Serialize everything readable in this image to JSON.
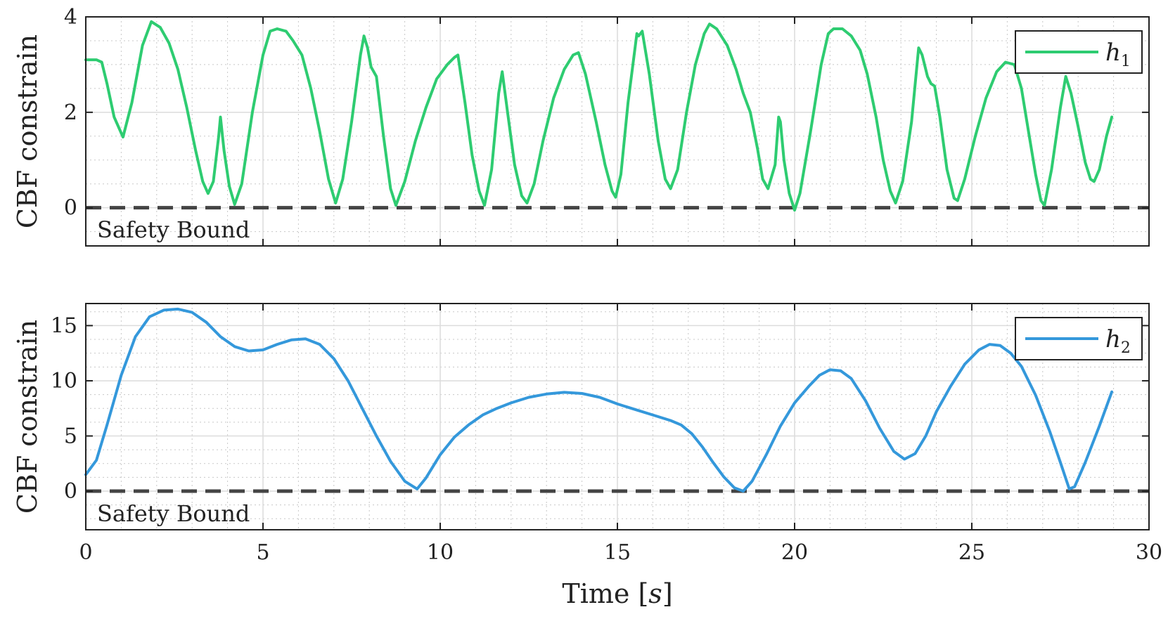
{
  "chart_data": [
    {
      "type": "line",
      "ylabel": "CBF constrain",
      "xlim": [
        0,
        30
      ],
      "ylim": [
        -0.8,
        4
      ],
      "yticks": [
        0,
        2,
        4
      ],
      "xticks": [
        0,
        5,
        10,
        15,
        20,
        25,
        30
      ],
      "x_tick_labels_shown": false,
      "grid": true,
      "minor_grid": true,
      "legend_position": "top-right",
      "series": [
        {
          "name": "h",
          "name_subscript": "1",
          "color": "#2ecc71",
          "points": [
            [
              0,
              3.1
            ],
            [
              0.3,
              3.1
            ],
            [
              0.45,
              3.05
            ],
            [
              0.6,
              2.6
            ],
            [
              0.8,
              1.9
            ],
            [
              1.05,
              1.48
            ],
            [
              1.3,
              2.2
            ],
            [
              1.6,
              3.4
            ],
            [
              1.85,
              3.9
            ],
            [
              2.1,
              3.78
            ],
            [
              2.35,
              3.45
            ],
            [
              2.6,
              2.9
            ],
            [
              2.85,
              2.1
            ],
            [
              3.1,
              1.2
            ],
            [
              3.3,
              0.55
            ],
            [
              3.45,
              0.3
            ],
            [
              3.6,
              0.55
            ],
            [
              3.75,
              1.5
            ],
            [
              3.8,
              1.9
            ],
            [
              3.9,
              1.2
            ],
            [
              4.05,
              0.45
            ],
            [
              4.2,
              0.07
            ],
            [
              4.4,
              0.5
            ],
            [
              4.7,
              2.0
            ],
            [
              5.0,
              3.2
            ],
            [
              5.2,
              3.7
            ],
            [
              5.4,
              3.75
            ],
            [
              5.65,
              3.7
            ],
            [
              5.85,
              3.5
            ],
            [
              6.1,
              3.2
            ],
            [
              6.35,
              2.5
            ],
            [
              6.6,
              1.6
            ],
            [
              6.85,
              0.6
            ],
            [
              7.05,
              0.1
            ],
            [
              7.25,
              0.6
            ],
            [
              7.5,
              1.8
            ],
            [
              7.75,
              3.2
            ],
            [
              7.85,
              3.6
            ],
            [
              7.95,
              3.35
            ],
            [
              8.05,
              2.95
            ],
            [
              8.2,
              2.75
            ],
            [
              8.4,
              1.5
            ],
            [
              8.6,
              0.4
            ],
            [
              8.75,
              0.05
            ],
            [
              9.0,
              0.55
            ],
            [
              9.3,
              1.4
            ],
            [
              9.6,
              2.1
            ],
            [
              9.9,
              2.7
            ],
            [
              10.2,
              3.0
            ],
            [
              10.4,
              3.15
            ],
            [
              10.5,
              3.2
            ],
            [
              10.7,
              2.2
            ],
            [
              10.9,
              1.1
            ],
            [
              11.1,
              0.35
            ],
            [
              11.25,
              0.05
            ],
            [
              11.45,
              0.8
            ],
            [
              11.65,
              2.4
            ],
            [
              11.75,
              2.85
            ],
            [
              11.9,
              2.0
            ],
            [
              12.1,
              0.9
            ],
            [
              12.3,
              0.25
            ],
            [
              12.45,
              0.1
            ],
            [
              12.65,
              0.5
            ],
            [
              12.9,
              1.4
            ],
            [
              13.2,
              2.3
            ],
            [
              13.5,
              2.9
            ],
            [
              13.75,
              3.2
            ],
            [
              13.9,
              3.25
            ],
            [
              14.1,
              2.8
            ],
            [
              14.4,
              1.8
            ],
            [
              14.65,
              0.9
            ],
            [
              14.85,
              0.35
            ],
            [
              14.95,
              0.22
            ],
            [
              15.1,
              0.7
            ],
            [
              15.3,
              2.2
            ],
            [
              15.55,
              3.65
            ],
            [
              15.6,
              3.6
            ],
            [
              15.7,
              3.7
            ],
            [
              15.9,
              2.8
            ],
            [
              16.15,
              1.4
            ],
            [
              16.35,
              0.6
            ],
            [
              16.5,
              0.4
            ],
            [
              16.7,
              0.8
            ],
            [
              16.95,
              2.0
            ],
            [
              17.2,
              3.0
            ],
            [
              17.45,
              3.65
            ],
            [
              17.6,
              3.85
            ],
            [
              17.8,
              3.75
            ],
            [
              18.1,
              3.4
            ],
            [
              18.35,
              2.9
            ],
            [
              18.55,
              2.4
            ],
            [
              18.75,
              2.0
            ],
            [
              18.95,
              1.25
            ],
            [
              19.1,
              0.6
            ],
            [
              19.25,
              0.4
            ],
            [
              19.45,
              0.9
            ],
            [
              19.55,
              1.9
            ],
            [
              19.6,
              1.8
            ],
            [
              19.7,
              1.0
            ],
            [
              19.85,
              0.3
            ],
            [
              20.0,
              -0.05
            ],
            [
              20.15,
              0.3
            ],
            [
              20.45,
              1.6
            ],
            [
              20.75,
              3.0
            ],
            [
              20.95,
              3.65
            ],
            [
              21.1,
              3.75
            ],
            [
              21.35,
              3.75
            ],
            [
              21.6,
              3.6
            ],
            [
              21.85,
              3.3
            ],
            [
              22.05,
              2.8
            ],
            [
              22.3,
              1.9
            ],
            [
              22.5,
              1.0
            ],
            [
              22.7,
              0.35
            ],
            [
              22.85,
              0.1
            ],
            [
              23.05,
              0.55
            ],
            [
              23.3,
              1.8
            ],
            [
              23.5,
              3.35
            ],
            [
              23.6,
              3.2
            ],
            [
              23.75,
              2.75
            ],
            [
              23.85,
              2.6
            ],
            [
              23.95,
              2.55
            ],
            [
              24.1,
              1.9
            ],
            [
              24.3,
              0.8
            ],
            [
              24.5,
              0.2
            ],
            [
              24.6,
              0.15
            ],
            [
              24.8,
              0.6
            ],
            [
              25.1,
              1.5
            ],
            [
              25.4,
              2.3
            ],
            [
              25.7,
              2.85
            ],
            [
              25.95,
              3.05
            ],
            [
              26.2,
              3.0
            ],
            [
              26.4,
              2.5
            ],
            [
              26.6,
              1.6
            ],
            [
              26.8,
              0.7
            ],
            [
              26.95,
              0.15
            ],
            [
              27.05,
              0.05
            ],
            [
              27.25,
              0.8
            ],
            [
              27.5,
              2.1
            ],
            [
              27.65,
              2.75
            ],
            [
              27.8,
              2.4
            ],
            [
              28.0,
              1.7
            ],
            [
              28.2,
              0.95
            ],
            [
              28.35,
              0.6
            ],
            [
              28.45,
              0.55
            ],
            [
              28.6,
              0.8
            ],
            [
              28.8,
              1.5
            ],
            [
              28.95,
              1.9
            ]
          ]
        }
      ],
      "reference_line": {
        "y": 0,
        "style": "dashed",
        "color": "#444444",
        "label": "Safety Bound"
      }
    },
    {
      "type": "line",
      "xlabel": "Time",
      "xlabel_unit": "s",
      "ylabel": "CBF constrain",
      "xlim": [
        0,
        30
      ],
      "ylim": [
        -3.5,
        17
      ],
      "yticks": [
        0,
        5,
        10,
        15
      ],
      "xticks": [
        0,
        5,
        10,
        15,
        20,
        25,
        30
      ],
      "grid": true,
      "minor_grid": true,
      "legend_position": "top-right",
      "series": [
        {
          "name": "h",
          "name_subscript": "2",
          "color": "#3498db",
          "points": [
            [
              0,
              1.5
            ],
            [
              0.3,
              2.8
            ],
            [
              0.6,
              6.0
            ],
            [
              1.0,
              10.5
            ],
            [
              1.4,
              14.0
            ],
            [
              1.8,
              15.8
            ],
            [
              2.2,
              16.4
            ],
            [
              2.6,
              16.5
            ],
            [
              3.0,
              16.2
            ],
            [
              3.4,
              15.3
            ],
            [
              3.8,
              14.0
            ],
            [
              4.2,
              13.1
            ],
            [
              4.6,
              12.7
            ],
            [
              5.0,
              12.8
            ],
            [
              5.4,
              13.3
            ],
            [
              5.8,
              13.7
            ],
            [
              6.2,
              13.8
            ],
            [
              6.6,
              13.3
            ],
            [
              7.0,
              12.0
            ],
            [
              7.4,
              10.0
            ],
            [
              7.8,
              7.5
            ],
            [
              8.2,
              5.0
            ],
            [
              8.6,
              2.7
            ],
            [
              9.0,
              0.9
            ],
            [
              9.35,
              0.2
            ],
            [
              9.6,
              1.2
            ],
            [
              10.0,
              3.3
            ],
            [
              10.4,
              4.9
            ],
            [
              10.8,
              6.0
            ],
            [
              11.2,
              6.9
            ],
            [
              11.6,
              7.5
            ],
            [
              12.0,
              8.0
            ],
            [
              12.5,
              8.5
            ],
            [
              13.0,
              8.8
            ],
            [
              13.5,
              8.95
            ],
            [
              14.0,
              8.85
            ],
            [
              14.5,
              8.5
            ],
            [
              15.0,
              7.9
            ],
            [
              15.5,
              7.4
            ],
            [
              16.0,
              6.9
            ],
            [
              16.5,
              6.4
            ],
            [
              16.8,
              6.0
            ],
            [
              17.1,
              5.2
            ],
            [
              17.4,
              4.0
            ],
            [
              17.7,
              2.6
            ],
            [
              18.0,
              1.3
            ],
            [
              18.3,
              0.3
            ],
            [
              18.55,
              0.0
            ],
            [
              18.8,
              0.9
            ],
            [
              19.2,
              3.3
            ],
            [
              19.6,
              5.9
            ],
            [
              20.0,
              8.0
            ],
            [
              20.4,
              9.5
            ],
            [
              20.7,
              10.5
            ],
            [
              21.0,
              11.0
            ],
            [
              21.3,
              10.9
            ],
            [
              21.6,
              10.2
            ],
            [
              22.0,
              8.2
            ],
            [
              22.4,
              5.7
            ],
            [
              22.8,
              3.6
            ],
            [
              23.1,
              2.9
            ],
            [
              23.4,
              3.4
            ],
            [
              23.7,
              5.0
            ],
            [
              24.0,
              7.2
            ],
            [
              24.4,
              9.5
            ],
            [
              24.8,
              11.5
            ],
            [
              25.2,
              12.8
            ],
            [
              25.5,
              13.3
            ],
            [
              25.8,
              13.2
            ],
            [
              26.1,
              12.5
            ],
            [
              26.4,
              11.3
            ],
            [
              26.8,
              8.7
            ],
            [
              27.2,
              5.4
            ],
            [
              27.5,
              2.6
            ],
            [
              27.75,
              0.2
            ],
            [
              27.9,
              0.4
            ],
            [
              28.2,
              2.6
            ],
            [
              28.6,
              5.9
            ],
            [
              28.95,
              9.0
            ]
          ]
        }
      ],
      "reference_line": {
        "y": 0,
        "style": "dashed",
        "color": "#444444",
        "label": "Safety Bound"
      }
    }
  ]
}
